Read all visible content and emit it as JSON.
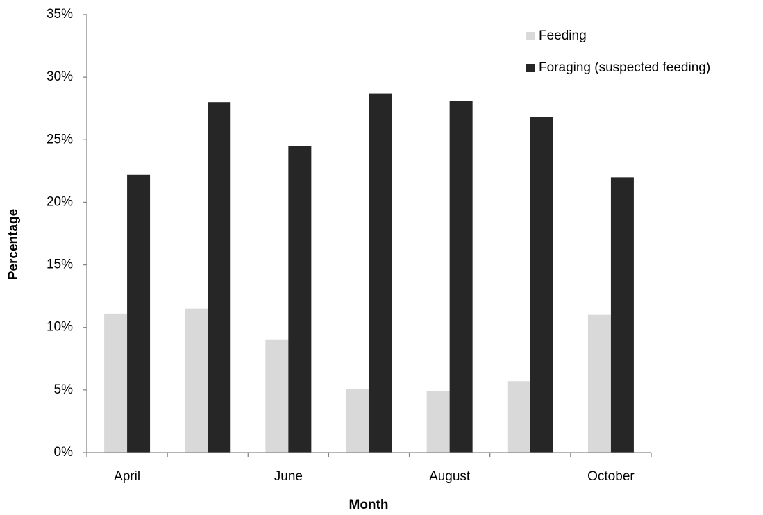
{
  "chart_data": {
    "type": "bar",
    "x_label": "Month",
    "y_label": "Percentage",
    "categories": [
      "April",
      null,
      "June",
      null,
      "August",
      null,
      "October"
    ],
    "series": [
      {
        "name": "Feeding",
        "color": "#d9d9d9",
        "values": [
          11.1,
          11.5,
          9.0,
          5.05,
          4.9,
          5.7,
          11.0
        ]
      },
      {
        "name": "Foraging (suspected feeding)",
        "color": "#262626",
        "values": [
          22.2,
          28.0,
          24.5,
          28.7,
          28.1,
          26.8,
          22.0
        ]
      }
    ],
    "ylim": [
      0,
      35
    ],
    "yticks": [
      {
        "value": 0,
        "label": "0%"
      },
      {
        "value": 5,
        "label": "5%"
      },
      {
        "value": 10,
        "label": "10%"
      },
      {
        "value": 15,
        "label": "15%"
      },
      {
        "value": 20,
        "label": "20%"
      },
      {
        "value": 25,
        "label": "25%"
      },
      {
        "value": 30,
        "label": "30%"
      },
      {
        "value": 35,
        "label": "35%"
      }
    ],
    "grid": false,
    "legend": "top-right"
  }
}
